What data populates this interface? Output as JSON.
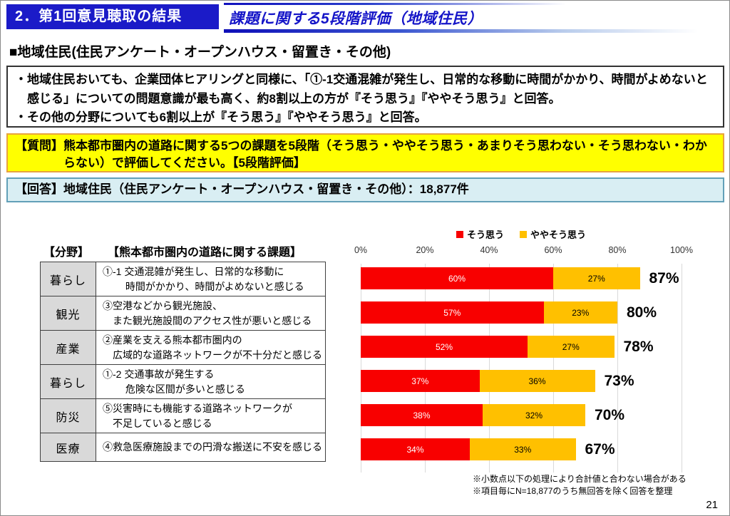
{
  "header": {
    "title": "2．第1回意見聴取の結果",
    "subtitle": "課題に関する5段階評価（地域住民）"
  },
  "section": {
    "heading": "■地域住民(住民アンケート・オープンハウス・留置き・その他)"
  },
  "overview": {
    "bullets": [
      "・地域住民おいても、企業団体ヒアリングと同様に、「①-1交通混雑が発生し、日常的な移動に時間がかかり、時間がよめないと感じる」についての問題意識が最も高く、約8割以上の方が『そう思う』『ややそう思う』と回答。",
      "・その他の分野についても6割以上が『そう思う』『ややそう思う』と回答。"
    ]
  },
  "question_box": {
    "text": "【質問】熊本都市圏内の道路に関する5つの課題を5段階（そう思う・ややそう思う・あまりそう思わない・そう思わない・わからない）で評価してください。【5段階評価】"
  },
  "answer_box": {
    "text": "【回答】地域住民（住民アンケート・オープンハウス・留置き・その他）：18,877件"
  },
  "table": {
    "col1_header": "【分野】",
    "col2_header": "【熊本都市圏内の道路に関する課題】",
    "rows": [
      {
        "category": "暮らし",
        "issue_lines": [
          "①-1 交通混雑が発生し、日常的な移動に",
          "　　 時間がかかり、時間がよめないと感じる"
        ]
      },
      {
        "category": "観光",
        "issue_lines": [
          "③空港などから観光施設、",
          "　また観光施設間のアクセス性が悪いと感じる"
        ]
      },
      {
        "category": "産業",
        "issue_lines": [
          "②産業を支える熊本都市圏内の",
          "　広域的な道路ネットワークが不十分だと感じる"
        ]
      },
      {
        "category": "暮らし",
        "issue_lines": [
          "①-2 交通事故が発生する",
          "　　 危険な区間が多いと感じる"
        ]
      },
      {
        "category": "防災",
        "issue_lines": [
          "⑤災害時にも機能する道路ネットワークが",
          "　不足していると感じる"
        ]
      },
      {
        "category": "医療",
        "issue_lines": [
          "④救急医療施設までの円滑な搬送に不安を感じる"
        ]
      }
    ]
  },
  "chart_data": {
    "type": "bar",
    "orientation": "horizontal",
    "stacked": true,
    "series": [
      {
        "name": "そう思う",
        "color": "#f80000",
        "values": [
          60,
          57,
          52,
          37,
          38,
          34
        ]
      },
      {
        "name": "ややそう思う",
        "color": "#ffc000",
        "values": [
          27,
          23,
          27,
          36,
          32,
          33
        ]
      }
    ],
    "segment_labels": [
      [
        "60%",
        "27%"
      ],
      [
        "57%",
        "23%"
      ],
      [
        "52%",
        "27%"
      ],
      [
        "37%",
        "36%"
      ],
      [
        "38%",
        "32%"
      ],
      [
        "34%",
        "33%"
      ]
    ],
    "totals": [
      "87%",
      "80%",
      "78%",
      "73%",
      "70%",
      "67%"
    ],
    "x_ticks": [
      "0%",
      "20%",
      "40%",
      "60%",
      "80%",
      "100%"
    ],
    "xlim": [
      0,
      100
    ],
    "grid": true,
    "legend_position": "top"
  },
  "footnotes": [
    "※小数点以下の処理により合計値と合わない場合がある",
    "※項目毎にN=18,877のうち無回答を除く回答を整理"
  ],
  "page": {
    "number": "21"
  }
}
